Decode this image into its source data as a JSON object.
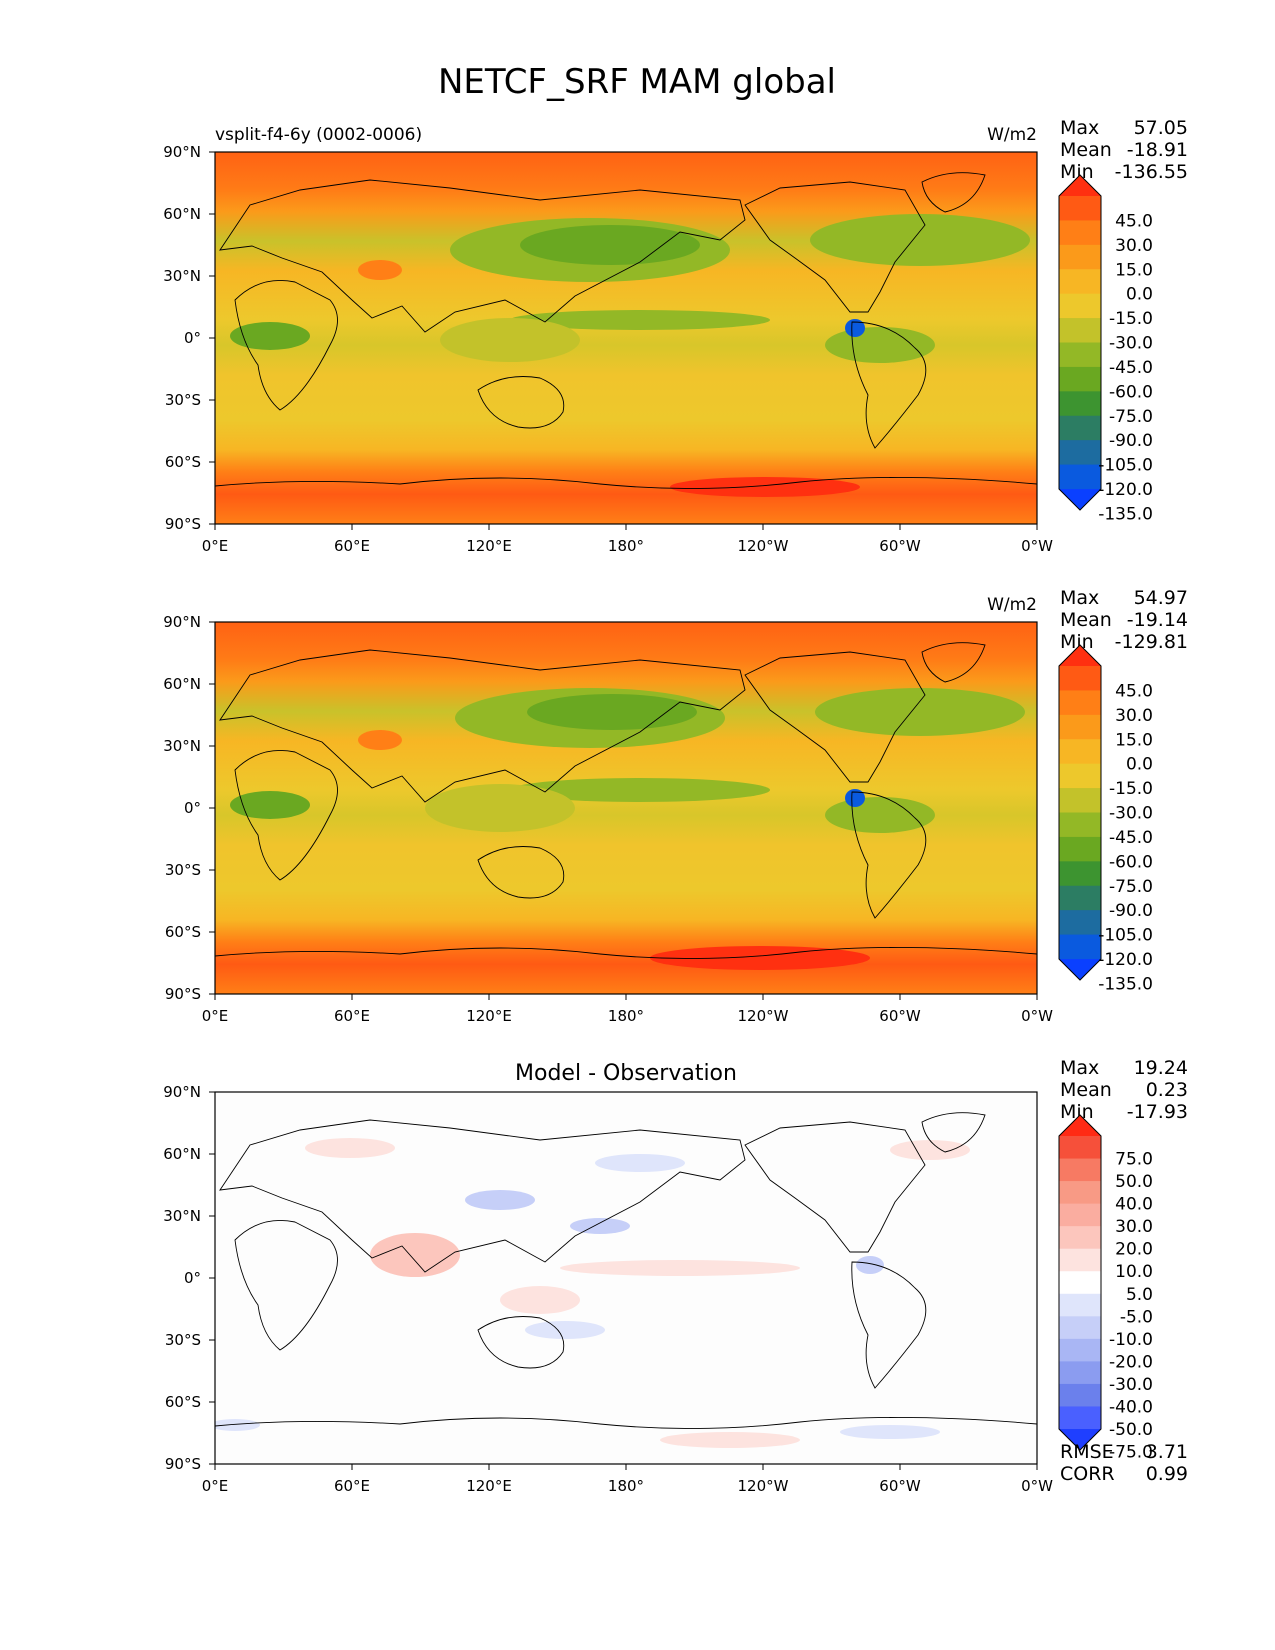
{
  "figure": {
    "title": "NETCF_SRF MAM global"
  },
  "axes": {
    "x_ticks": [
      "0°E",
      "60°E",
      "120°E",
      "180°",
      "120°W",
      "60°W",
      "0°W"
    ],
    "y_ticks": [
      "90°N",
      "60°N",
      "30°N",
      "0°",
      "30°S",
      "60°S",
      "90°S"
    ]
  },
  "chart_data": [
    {
      "type": "heatmap",
      "name": "test",
      "left_title": "vsplit-f4-6y (0002-0006)",
      "center_title": "",
      "units": "W/m2",
      "stats": [
        {
          "label": "Max",
          "value": "57.05"
        },
        {
          "label": "Mean",
          "value": "-18.91"
        },
        {
          "label": "Min",
          "value": "-136.55"
        }
      ],
      "colorbar": {
        "levels": [
          "45.0",
          "30.0",
          "15.0",
          "0.0",
          "-15.0",
          "-30.0",
          "-45.0",
          "-60.0",
          "-75.0",
          "-90.0",
          "-105.0",
          "-120.0",
          "-135.0"
        ],
        "colors": [
          "#ff3010",
          "#ff5a14",
          "#ff7f16",
          "#fb9a1a",
          "#f7b624",
          "#edc82c",
          "#c3c22a",
          "#93b826",
          "#6aa821",
          "#3d9430",
          "#2c7d63",
          "#1d6ca0",
          "#0a5adf",
          "#0a40ff"
        ],
        "extend": "both"
      }
    },
    {
      "type": "heatmap",
      "name": "reference",
      "left_title": "",
      "center_title": "",
      "units": "W/m2",
      "stats": [
        {
          "label": "Max",
          "value": "54.97"
        },
        {
          "label": "Mean",
          "value": "-19.14"
        },
        {
          "label": "Min",
          "value": "-129.81"
        }
      ],
      "colorbar": {
        "levels": [
          "45.0",
          "30.0",
          "15.0",
          "0.0",
          "-15.0",
          "-30.0",
          "-45.0",
          "-60.0",
          "-75.0",
          "-90.0",
          "-105.0",
          "-120.0",
          "-135.0"
        ],
        "colors": [
          "#ff3010",
          "#ff5a14",
          "#ff7f16",
          "#fb9a1a",
          "#f7b624",
          "#edc82c",
          "#c3c22a",
          "#93b826",
          "#6aa821",
          "#3d9430",
          "#2c7d63",
          "#1d6ca0",
          "#0a5adf",
          "#0a40ff"
        ],
        "extend": "both"
      }
    },
    {
      "type": "heatmap",
      "name": "difference",
      "left_title": "",
      "center_title": "Model - Observation",
      "units": "",
      "stats": [
        {
          "label": "Max",
          "value": "19.24"
        },
        {
          "label": "Mean",
          "value": "0.23"
        },
        {
          "label": "Min",
          "value": "-17.93"
        }
      ],
      "metrics": [
        {
          "label": "RMSE",
          "value": "3.71"
        },
        {
          "label": "CORR",
          "value": "0.99"
        }
      ],
      "colorbar": {
        "levels": [
          "75.0",
          "50.0",
          "40.0",
          "30.0",
          "20.0",
          "10.0",
          "5.0",
          "-5.0",
          "-10.0",
          "-20.0",
          "-30.0",
          "-40.0",
          "-50.0",
          "-75.0"
        ],
        "colors": [
          "#ff2a14",
          "#f6503a",
          "#f77a63",
          "#f89a85",
          "#faada0",
          "#fcc6bd",
          "#fde3df",
          "#ffffff",
          "#dfe5fb",
          "#c6cff8",
          "#a9b6f4",
          "#8b9cf0",
          "#6b80ec",
          "#4a60ff",
          "#1f3fff"
        ],
        "extend": "both"
      }
    }
  ]
}
